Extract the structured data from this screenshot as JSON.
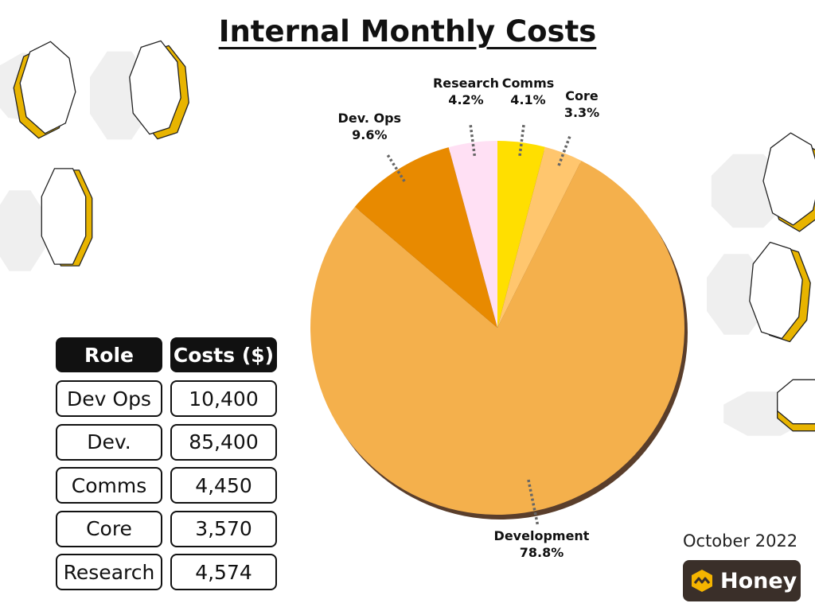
{
  "title": "Internal Monthly Costs",
  "chart_data": {
    "type": "pie",
    "slices": [
      {
        "name": "Comms",
        "percent": 4.1,
        "label": "4.1%",
        "color": "#FFDF00"
      },
      {
        "name": "Core",
        "percent": 3.3,
        "label": "3.3%",
        "color": "#FFC66E"
      },
      {
        "name": "Development",
        "percent": 78.8,
        "label": "78.8%",
        "color": "#F4B04C"
      },
      {
        "name": "Dev. Ops",
        "percent": 9.6,
        "label": "9.6%",
        "color": "#E88A00"
      },
      {
        "name": "Research",
        "percent": 4.2,
        "label": "4.2%",
        "color": "#FFE0F4"
      }
    ],
    "start_angle_deg": 0,
    "direction": "clockwise",
    "shadow_color": "#5a3e2b"
  },
  "table": {
    "headers": [
      "Role",
      "Costs ($)"
    ],
    "rows": [
      {
        "role": "Dev Ops",
        "cost": "10,400"
      },
      {
        "role": "Dev.",
        "cost": "85,400"
      },
      {
        "role": "Comms",
        "cost": "4,450"
      },
      {
        "role": "Core",
        "cost": "3,570"
      },
      {
        "role": "Research",
        "cost": "4,574"
      }
    ]
  },
  "date": "October 2022",
  "brand": {
    "name": "Honey",
    "icon": "honey-logo-icon",
    "bg": "#3a2f29",
    "accent": "#F4B400"
  }
}
